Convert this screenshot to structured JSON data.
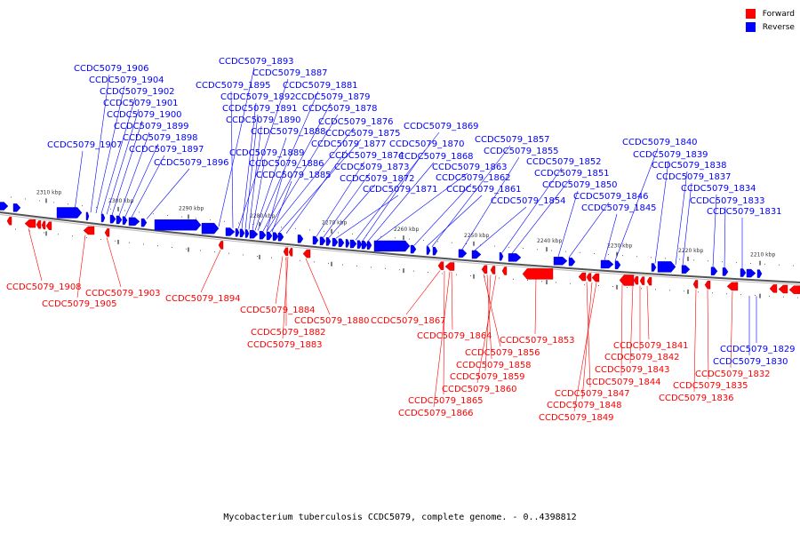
{
  "legend": {
    "forward_label": "Forward",
    "reverse_label": "Reverse",
    "forward_color": "#ff0000",
    "reverse_color": "#0000ff"
  },
  "caption": "Mycobacterium tuberculosis CCDC5079, complete genome. - 0..4398812",
  "axis": {
    "ticks": [
      "2310 kbp",
      "2300 kbp",
      "2290 kbp",
      "2280 kbp",
      "2270 kbp",
      "2260 kbp",
      "2250 kbp",
      "2240 kbp",
      "2230 kbp",
      "2220 kbp",
      "2210 kbp"
    ]
  },
  "reverse_genes": [
    "CCDC5079_1906",
    "CCDC5079_1904",
    "CCDC5079_1902",
    "CCDC5079_1901",
    "CCDC5079_1900",
    "CCDC5079_1899",
    "CCDC5079_1898",
    "CCDC5079_1897",
    "CCDC5079_1896",
    "CCDC5079_1907",
    "CCDC5079_1893",
    "CCDC5079_1887",
    "CCDC5079_1895",
    "CCDC5079_1881",
    "CCDC5079_1892",
    "CCDC5079_1879",
    "CCDC5079_1891",
    "CCDC5079_1878",
    "CCDC5079_1890",
    "CCDC5079_1876",
    "CCDC5079_1888",
    "CCDC5079_1875",
    "CCDC5079_1877",
    "CCDC5079_1889",
    "CCDC5079_1874",
    "CCDC5079_1886",
    "CCDC5079_1873",
    "CCDC5079_1885",
    "CCDC5079_1872",
    "CCDC5079_1871",
    "CCDC5079_1869",
    "CCDC5079_1870",
    "CCDC5079_1868",
    "CCDC5079_1863",
    "CCDC5079_1862",
    "CCDC5079_1861",
    "CCDC5079_1857",
    "CCDC5079_1855",
    "CCDC5079_1854",
    "CCDC5079_1852",
    "CCDC5079_1851",
    "CCDC5079_1850",
    "CCDC5079_1846",
    "CCDC5079_1845",
    "CCDC5079_1840",
    "CCDC5079_1839",
    "CCDC5079_1838",
    "CCDC5079_1837",
    "CCDC5079_1834",
    "CCDC5079_1833",
    "CCDC5079_1831",
    "CCDC5079_1829",
    "CCDC5079_1830"
  ],
  "forward_genes": [
    "CCDC5079_1908",
    "CCDC5079_1905",
    "CCDC5079_1903",
    "CCDC5079_1894",
    "CCDC5079_1884",
    "CCDC5079_1882",
    "CCDC5079_1883",
    "CCDC5079_1880",
    "CCDC5079_1867",
    "CCDC5079_1864",
    "CCDC5079_1853",
    "CCDC5079_1856",
    "CCDC5079_1858",
    "CCDC5079_1859",
    "CCDC5079_1860",
    "CCDC5079_1865",
    "CCDC5079_1866",
    "CCDC5079_1841",
    "CCDC5079_1842",
    "CCDC5079_1843",
    "CCDC5079_1844",
    "CCDC5079_1847",
    "CCDC5079_1848",
    "CCDC5079_1849",
    "CCDC5079_1832",
    "CCDC5079_1835",
    "CCDC5079_1836"
  ]
}
